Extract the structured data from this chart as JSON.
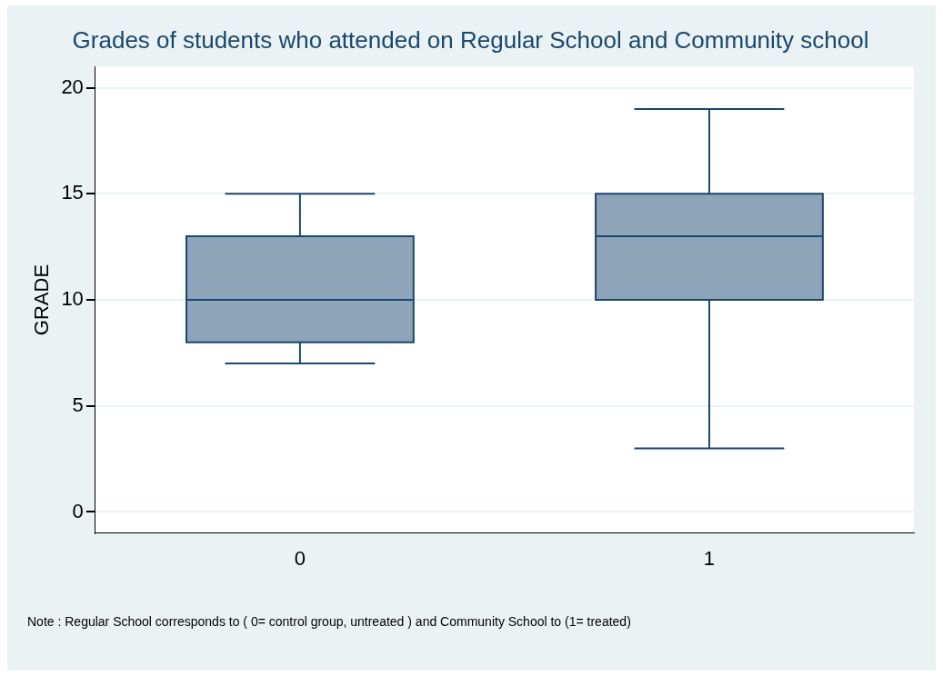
{
  "chart_data": {
    "type": "box",
    "title": "Grades of students who attended on Regular School and Community school",
    "ylabel": "GRADE",
    "categories": [
      "0",
      "1"
    ],
    "boxes": [
      {
        "low": 7,
        "q1": 8,
        "median": 10,
        "q3": 13,
        "high": 15
      },
      {
        "low": 3,
        "q1": 10,
        "median": 13,
        "q3": 15,
        "high": 19
      }
    ],
    "color": "#8ea4b8",
    "ylim": [
      -1,
      21
    ],
    "yticks": [
      0,
      5,
      10,
      15,
      20
    ],
    "grid": "y",
    "legend": false,
    "annotations": [
      "Note : Regular School corresponds to ( 0= control group, untreated ) and Community School to (1= treated)"
    ]
  }
}
